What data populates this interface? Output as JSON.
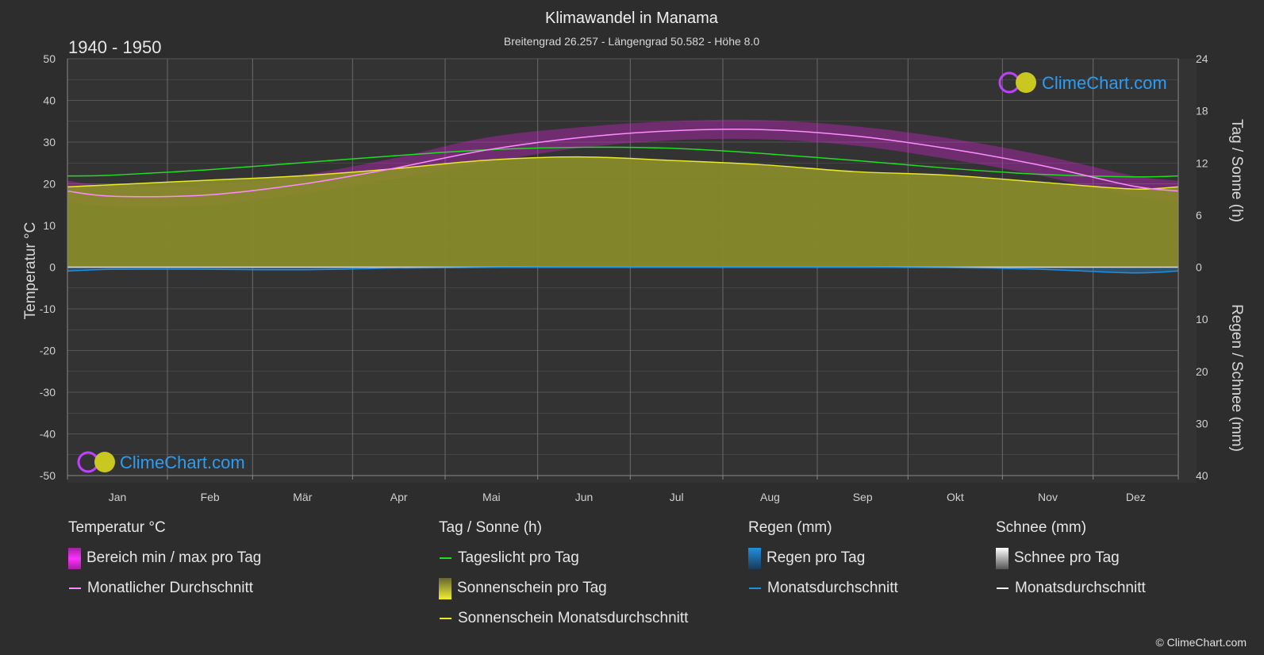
{
  "header": {
    "title": "Klimawandel in Manama",
    "subtitle": "Breitengrad 26.257 - Längengrad 50.582 - Höhe 8.0",
    "period": "1940 - 1950"
  },
  "brand": {
    "name": "ClimeChart.com",
    "copyright": "© ClimeChart.com"
  },
  "colors": {
    "background": "#2d2d2d",
    "plot_area": "#333333",
    "grid": "#555555",
    "temp_range": "#e020e0",
    "temp_avg": "#ff8cff",
    "daylight": "#22dd22",
    "sunshine_fill": "#888a2a",
    "sunshine_avg": "#e8e830",
    "rain": "#1f8fe0",
    "snow": "#ffffff",
    "brand": "#2a9df4"
  },
  "chart_data": {
    "type": "area",
    "x_months": [
      "Jan",
      "Feb",
      "Mär",
      "Apr",
      "Mai",
      "Jun",
      "Jul",
      "Aug",
      "Sep",
      "Okt",
      "Nov",
      "Dez"
    ],
    "axes": {
      "left": {
        "label": "Temperatur °C",
        "range": [
          -50,
          50
        ],
        "ticks": [
          50,
          40,
          30,
          20,
          10,
          0,
          -10,
          -20,
          -30,
          -40,
          -50
        ]
      },
      "right_top": {
        "label": "Tag / Sonne (h)",
        "range": [
          0,
          24
        ],
        "ticks": [
          24,
          18,
          12,
          6,
          0
        ]
      },
      "right_bottom": {
        "label": "Regen / Schnee (mm)",
        "range": [
          0,
          40
        ],
        "ticks": [
          10,
          20,
          30,
          40
        ]
      }
    },
    "grid": true,
    "series": [
      {
        "name": "Monatlicher Durchschnitt",
        "unit": "°C",
        "values": [
          17.0,
          17.3,
          19.8,
          23.6,
          28.0,
          31.0,
          32.7,
          33.0,
          31.5,
          28.5,
          24.5,
          19.5
        ]
      },
      {
        "name": "Bereich min / max pro Tag",
        "unit": "°C",
        "max": [
          19.5,
          19.8,
          22.0,
          26.0,
          31.0,
          33.5,
          35.0,
          35.3,
          33.8,
          31.0,
          27.0,
          22.0
        ],
        "min": [
          14.5,
          14.8,
          17.5,
          21.0,
          25.0,
          28.5,
          30.4,
          30.7,
          29.2,
          26.0,
          22.0,
          17.0
        ]
      },
      {
        "name": "Tageslicht pro Tag",
        "unit": "h",
        "values": [
          10.6,
          11.2,
          12.0,
          12.8,
          13.5,
          13.8,
          13.7,
          13.1,
          12.3,
          11.4,
          10.7,
          10.4
        ]
      },
      {
        "name": "Sonnenschein Monatsdurchschnitt",
        "unit": "h",
        "values": [
          9.5,
          10.0,
          10.5,
          11.3,
          12.3,
          12.7,
          12.3,
          11.8,
          11.0,
          10.6,
          9.8,
          9.0
        ]
      },
      {
        "name": "Regen Monatsdurchschnitt",
        "unit": "mm",
        "values": [
          0.4,
          0.4,
          0.5,
          0.2,
          0.05,
          0.0,
          0.0,
          0.0,
          0.0,
          0.1,
          0.4,
          1.1
        ]
      },
      {
        "name": "Schnee Monatsdurchschnitt",
        "unit": "mm",
        "values": [
          0,
          0,
          0,
          0,
          0,
          0,
          0,
          0,
          0,
          0,
          0,
          0
        ]
      }
    ]
  },
  "legend": {
    "temperature": {
      "heading": "Temperatur °C",
      "range_label": "Bereich min / max pro Tag",
      "avg_label": "Monatlicher Durchschnitt"
    },
    "sun": {
      "heading": "Tag / Sonne (h)",
      "daylight_label": "Tageslicht pro Tag",
      "sunshine_label": "Sonnenschein pro Tag",
      "sunshine_avg_label": "Sonnenschein Monatsdurchschnitt"
    },
    "rain": {
      "heading": "Regen (mm)",
      "day_label": "Regen pro Tag",
      "avg_label": "Monatsdurchschnitt"
    },
    "snow": {
      "heading": "Schnee (mm)",
      "day_label": "Schnee pro Tag",
      "avg_label": "Monatsdurchschnitt"
    }
  }
}
